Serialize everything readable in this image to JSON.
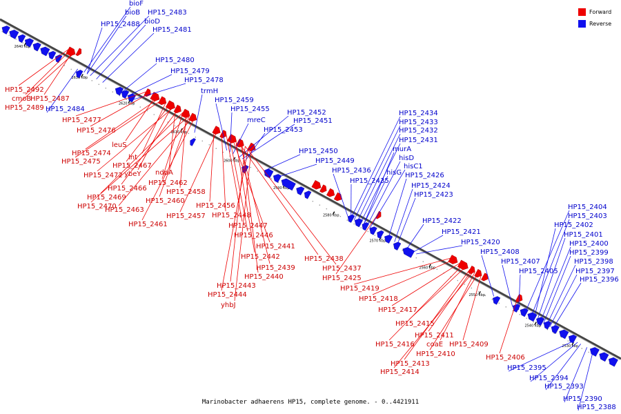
{
  "caption": "Marinobacter adhaerens HP15, complete genome. - 0..4421911",
  "legend": {
    "forward": {
      "label": "Forward",
      "color": "#ee0000"
    },
    "reverse": {
      "label": "Reverse",
      "color": "#1010ee"
    }
  },
  "ticks": [
    "2640 kbp",
    "2630 kbp",
    "2620 kbp",
    "2610 kbp",
    "2600 kbp",
    "2590 kbp",
    "2580 kbp",
    "2570 kbp",
    "2560 kbp",
    "2550 kbp",
    "2540 kbp",
    "2530 kbp"
  ],
  "reverse_labels": [
    "bioF",
    "bioB",
    "HP15_2483",
    "HP15_2488",
    "bioD",
    "HP15_2481",
    "HP15_2480",
    "HP15_2479",
    "HP15_2478",
    "trmH",
    "HP15_2459",
    "HP15_2455",
    "mreC",
    "HP15_2452",
    "HP15_2451",
    "HP15_2453",
    "HP15_2450",
    "HP15_2449",
    "HP15_2434",
    "HP15_2433",
    "HP15_2432",
    "HP15_2431",
    "murA",
    "hisD",
    "hisC1",
    "hisG",
    "HP15_2436",
    "HP15_2426",
    "HP15_2435",
    "HP15_2424",
    "HP15_2423",
    "HP15_2422",
    "HP15_2421",
    "HP15_2420",
    "HP15_2408",
    "HP15_2407",
    "HP15_2405",
    "HP15_2404",
    "HP15_2403",
    "HP15_2402",
    "HP15_2401",
    "HP15_2400",
    "HP15_2399",
    "HP15_2398",
    "HP15_2397",
    "HP15_2396",
    "HP15_2395",
    "HP15_2394",
    "HP15_2393",
    "HP15_2390",
    "HP15_2388",
    "HP15_2484"
  ],
  "forward_labels": [
    "HP15_2492",
    "cmoB",
    "HP15_2487",
    "HP15_2489",
    "HP15_2477",
    "HP15_2476",
    "leuS",
    "HP15_2474",
    "HP15_2475",
    "lnt",
    "HP15_2467",
    "ybeY",
    "HP15_2472",
    "ndpA",
    "HP15_2466",
    "HP15_2462",
    "HP15_2469",
    "HP15_2458",
    "HP15_2470",
    "HP15_2460",
    "HP15_2463",
    "HP15_2456",
    "HP15_2457",
    "HP15_2448",
    "HP15_2461",
    "HP15_2447",
    "HP15_2446",
    "HP15_2441",
    "HP15_2442",
    "HP15_2438",
    "HP15_2439",
    "HP15_2437",
    "HP15_2440",
    "HP15_2425",
    "HP15_2443",
    "HP15_2419",
    "HP15_2444",
    "HP15_2418",
    "yhbJ",
    "HP15_2417",
    "HP15_2415",
    "HP15_2411",
    "coaE",
    "HP15_2409",
    "HP15_2416",
    "HP15_2410",
    "HP15_2406",
    "HP15_2413",
    "HP15_2414"
  ]
}
